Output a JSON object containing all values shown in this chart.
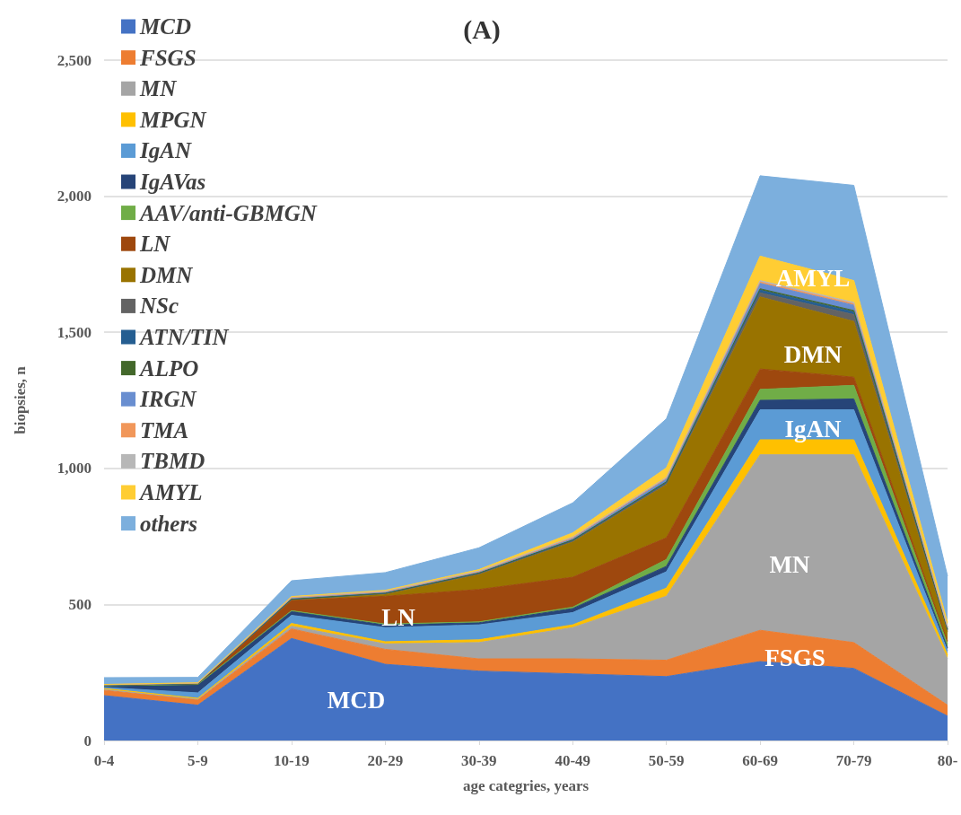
{
  "chart_data": {
    "type": "area",
    "stacked": true,
    "title": "(A)",
    "xlabel": "age categries, years",
    "ylabel": "biopsies, n",
    "categories": [
      "0-4",
      "5-9",
      "10-19",
      "20-29",
      "30-39",
      "40-49",
      "50-59",
      "60-69",
      "70-79",
      "80-"
    ],
    "series": [
      {
        "name": "MCD",
        "color": "#4472c4",
        "values": [
          165,
          130,
          375,
          280,
          255,
          245,
          235,
          290,
          265,
          90
        ]
      },
      {
        "name": "FSGS",
        "color": "#ed7d31",
        "values": [
          20,
          20,
          35,
          55,
          45,
          55,
          60,
          115,
          95,
          40
        ]
      },
      {
        "name": "MN",
        "color": "#a5a5a5",
        "values": [
          3,
          2,
          10,
          20,
          60,
          115,
          235,
          645,
          690,
          170
        ]
      },
      {
        "name": "MPGN",
        "color": "#ffc000",
        "values": [
          3,
          3,
          10,
          8,
          10,
          10,
          30,
          55,
          55,
          15
        ]
      },
      {
        "name": "IgAN",
        "color": "#5b9bd5",
        "values": [
          4,
          20,
          30,
          52,
          55,
          45,
          60,
          110,
          110,
          15
        ]
      },
      {
        "name": "IgAVas",
        "color": "#264478",
        "values": [
          5,
          30,
          15,
          10,
          8,
          15,
          20,
          35,
          40,
          10
        ]
      },
      {
        "name": "AAV/anti-GBMGN",
        "color": "#70ad47",
        "values": [
          1,
          1,
          2,
          3,
          3,
          5,
          25,
          40,
          50,
          15
        ]
      },
      {
        "name": "LN",
        "color": "#9e480e",
        "values": [
          2,
          3,
          38,
          102,
          119,
          110,
          80,
          75,
          30,
          10
        ]
      },
      {
        "name": "DMN",
        "color": "#997300",
        "values": [
          0,
          0,
          2,
          8,
          55,
          130,
          195,
          265,
          205,
          35
        ]
      },
      {
        "name": "NSc",
        "color": "#636363",
        "values": [
          0,
          0,
          1,
          2,
          3,
          3,
          5,
          15,
          25,
          5
        ]
      },
      {
        "name": "ATN/TIN",
        "color": "#255e91",
        "values": [
          0,
          0,
          1,
          1,
          2,
          2,
          3,
          10,
          10,
          3
        ]
      },
      {
        "name": "ALPO",
        "color": "#43682b",
        "values": [
          0,
          0,
          1,
          1,
          1,
          2,
          3,
          5,
          5,
          2
        ]
      },
      {
        "name": "IRGN",
        "color": "#698ed0",
        "values": [
          1,
          1,
          3,
          3,
          3,
          5,
          10,
          20,
          20,
          5
        ]
      },
      {
        "name": "TMA",
        "color": "#f1975a",
        "values": [
          1,
          1,
          2,
          2,
          2,
          3,
          3,
          5,
          5,
          2
        ]
      },
      {
        "name": "TBMD",
        "color": "#b7b7b7",
        "values": [
          1,
          1,
          2,
          2,
          2,
          3,
          3,
          5,
          5,
          2
        ]
      },
      {
        "name": "AMYL",
        "color": "#ffcd33",
        "values": [
          0,
          0,
          2,
          3,
          5,
          15,
          35,
          90,
          80,
          15
        ]
      },
      {
        "name": "others",
        "color": "#7cafdd",
        "values": [
          25,
          20,
          58,
          65,
          80,
          110,
          180,
          295,
          350,
          170
        ]
      }
    ],
    "ylim": [
      0,
      2500
    ],
    "yticks": [
      0,
      {
        "value": 500,
        "label": "500"
      },
      {
        "value": 1000,
        "label": "1,000"
      },
      {
        "value": 1500,
        "label": "1,500"
      },
      {
        "value": 2000,
        "label": "2,000"
      },
      {
        "value": 2500,
        "label": "2,500"
      }
    ],
    "grid": "y",
    "legend": "top left",
    "annotations": [
      "MCD",
      "FSGS",
      "MN",
      "IgAN",
      "DMN",
      "AMYL",
      "LN"
    ]
  }
}
